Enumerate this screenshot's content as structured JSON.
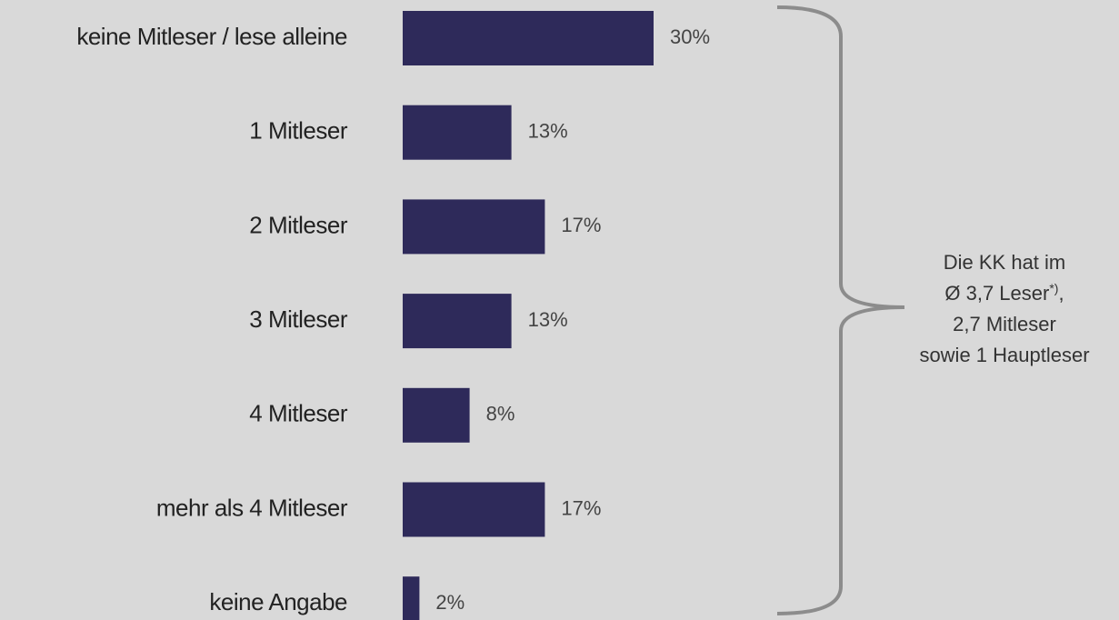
{
  "chart_data": {
    "type": "hbar",
    "categories": [
      "keine Mitleser / lese alleine",
      "1 Mitleser",
      "2 Mitleser",
      "3 Mitleser",
      "4 Mitleser",
      "mehr als 4 Mitleser",
      "keine Angabe"
    ],
    "values": [
      30,
      13,
      17,
      13,
      8,
      17,
      2
    ],
    "value_labels": [
      "30%",
      "13%",
      "17%",
      "13%",
      "8%",
      "17%",
      "2%"
    ],
    "color": "#2e2a5a",
    "annotation": [
      [
        "Die KK hat im"
      ],
      [
        "Ø 3,7 Leser",
        "*)",
        ","
      ],
      [
        "2,7 Mitleser"
      ],
      [
        "sowie 1 Hauptleser"
      ]
    ]
  }
}
